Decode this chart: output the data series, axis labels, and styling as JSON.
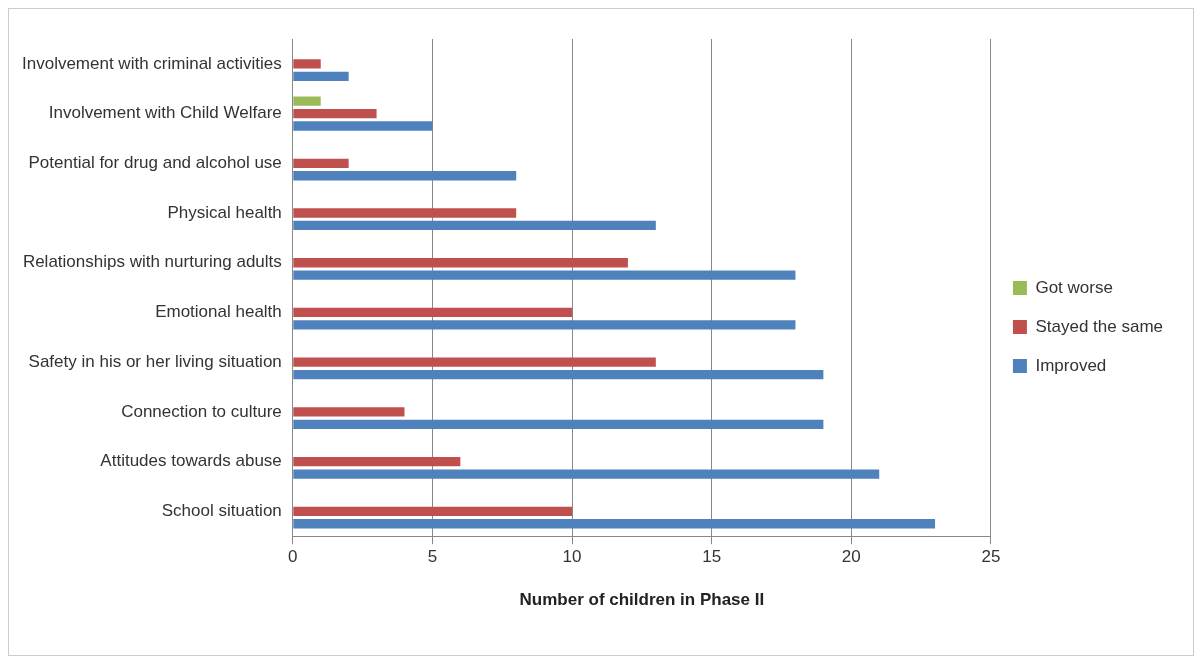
{
  "chart_data": {
    "type": "bar",
    "orientation": "horizontal",
    "xlabel": "Number of children in Phase II",
    "categories": [
      "Involvement with criminal activities",
      "Involvement with Child Welfare",
      "Potential for drug and alcohol use",
      "Physical health",
      "Relationships with nurturing adults",
      "Emotional health",
      "Safety in his or her living situation",
      "Connection to culture",
      "Attitudes towards abuse",
      "School situation"
    ],
    "series": [
      {
        "name": "Got worse",
        "color": "#9bbb59",
        "values": [
          null,
          1,
          null,
          null,
          null,
          null,
          null,
          null,
          null,
          null
        ]
      },
      {
        "name": "Stayed the same",
        "color": "#c0504d",
        "values": [
          1,
          3,
          2,
          8,
          12,
          10,
          13,
          4,
          6,
          10
        ]
      },
      {
        "name": "Improved",
        "color": "#4f81bd",
        "values": [
          2,
          5,
          8,
          13,
          18,
          18,
          19,
          19,
          21,
          23
        ]
      }
    ],
    "xlim": [
      0,
      25
    ],
    "xticks": [
      0,
      5,
      10,
      15,
      20,
      25
    ],
    "grid": "x",
    "legend": "right"
  }
}
